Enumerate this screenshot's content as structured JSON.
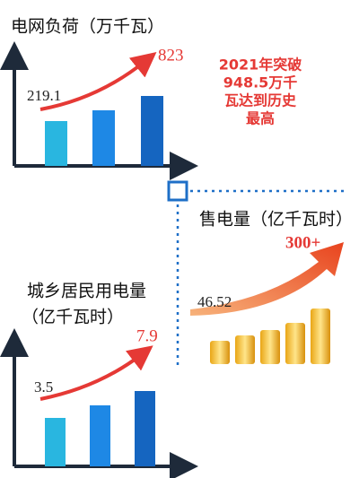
{
  "panels": [
    {
      "title": "电网负荷（万千瓦）",
      "start": 219.1,
      "end": 823,
      "note": [
        "2021年突破",
        "948.5万千",
        "瓦达到历史",
        "最高"
      ]
    },
    {
      "title": "售电量（亿千瓦时）",
      "start": 46.52,
      "end": "300+"
    },
    {
      "title": [
        "城乡居民用电量",
        "（亿千瓦时）"
      ],
      "start": 3.5,
      "end": 7.9
    }
  ]
}
